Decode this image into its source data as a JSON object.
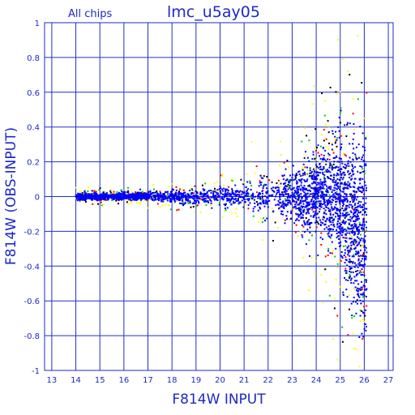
{
  "chart_data": {
    "type": "scatter",
    "title": "lmc_u5ay05",
    "subtitle": "All chips",
    "xlabel": "F814W INPUT",
    "ylabel": "F814W (OBS-INPUT)",
    "xlim": [
      12.7,
      27.2
    ],
    "ylim": [
      -1,
      1
    ],
    "xticks": [
      "13",
      "14",
      "15",
      "16",
      "17",
      "18",
      "19",
      "20",
      "21",
      "22",
      "23",
      "24",
      "25",
      "26",
      "27"
    ],
    "yticks": [
      "1",
      "0.8",
      "0.6",
      "0.4",
      "0.2",
      "0",
      "-0.2",
      "-0.4",
      "-0.6",
      "-0.8",
      "-1"
    ],
    "grid": true,
    "series_colors": [
      "#ffff00",
      "#ff0000",
      "#00cc00",
      "#000000",
      "#0000ff"
    ],
    "description_note": "Photometric residuals vs input magnitude: tight locus near 0 from mag 14 to 22, fanning out to roughly ±0.4 near mag 24-25 and reaching -1 beyond mag 25.5"
  },
  "colors": {
    "axis": "#1e28c8",
    "grid": "#2030c8",
    "points": "#0a14ff"
  }
}
